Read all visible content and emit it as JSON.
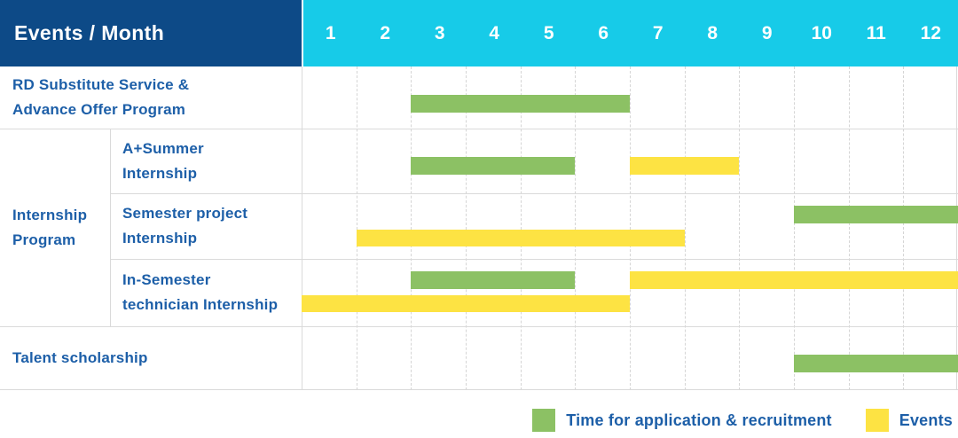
{
  "header": {
    "title": "Events / Month"
  },
  "colors": {
    "navy": "#0d4a87",
    "cyan": "#17cbe8",
    "green": "#8cc164",
    "yellow": "#fde343",
    "label_blue": "#1d5fa8",
    "grid": "#dadada"
  },
  "chart_data": {
    "type": "bar",
    "variant": "gantt",
    "title": "Events / Month schedule",
    "xlabel": "Month",
    "months": [
      "1",
      "2",
      "3",
      "4",
      "5",
      "6",
      "7",
      "8",
      "9",
      "10",
      "11",
      "12"
    ],
    "x_range": [
      1,
      12
    ],
    "grid": true,
    "legend_position": "bottom-right",
    "legend": [
      {
        "key": "application",
        "label": "Time for application & recruitment",
        "color": "#8cc164"
      },
      {
        "key": "event",
        "label": "Events",
        "color": "#fde343"
      }
    ],
    "group_rows": {
      "label": "Internship Program",
      "lines": [
        "Internship",
        "Program"
      ],
      "row_indexes": [
        1,
        2,
        3
      ]
    },
    "rows": [
      {
        "id": "rd-substitute-service",
        "label": "RD Substitute Service & Advance Offer Program",
        "label_lines": [
          "RD Substitute Service &",
          "Advance Offer Program"
        ],
        "group": null,
        "bars": [
          {
            "kind": "application",
            "start_month": 3,
            "end_month": 6,
            "lane": "single"
          }
        ]
      },
      {
        "id": "a-plus-summer-internship",
        "label": "A+Summer Internship",
        "label_lines": [
          "A+Summer",
          "Internship"
        ],
        "group": "Internship Program",
        "bars": [
          {
            "kind": "application",
            "start_month": 3,
            "end_month": 5,
            "lane": "single"
          },
          {
            "kind": "event",
            "start_month": 7,
            "end_month": 8,
            "lane": "single"
          }
        ]
      },
      {
        "id": "semester-project-internship",
        "label": "Semester project Internship",
        "label_lines": [
          "Semester project",
          "Internship"
        ],
        "group": "Internship Program",
        "bars": [
          {
            "kind": "application",
            "start_month": 10,
            "end_month": 12,
            "lane": "upper"
          },
          {
            "kind": "event",
            "start_month": 2,
            "end_month": 7,
            "lane": "lower"
          }
        ]
      },
      {
        "id": "in-semester-technician-internship",
        "label": "In-Semester technician Internship",
        "label_lines": [
          "In-Semester",
          "technician Internship"
        ],
        "group": "Internship Program",
        "bars": [
          {
            "kind": "application",
            "start_month": 3,
            "end_month": 5,
            "lane": "upper"
          },
          {
            "kind": "event",
            "start_month": 7,
            "end_month": 12,
            "lane": "upper"
          },
          {
            "kind": "event",
            "start_month": 1,
            "end_month": 6,
            "lane": "lower"
          }
        ]
      },
      {
        "id": "talent-scholarship",
        "label": "Talent scholarship",
        "label_lines": [
          "Talent scholarship"
        ],
        "group": null,
        "bars": [
          {
            "kind": "application",
            "start_month": 10,
            "end_month": 12,
            "lane": "single"
          }
        ]
      }
    ]
  }
}
